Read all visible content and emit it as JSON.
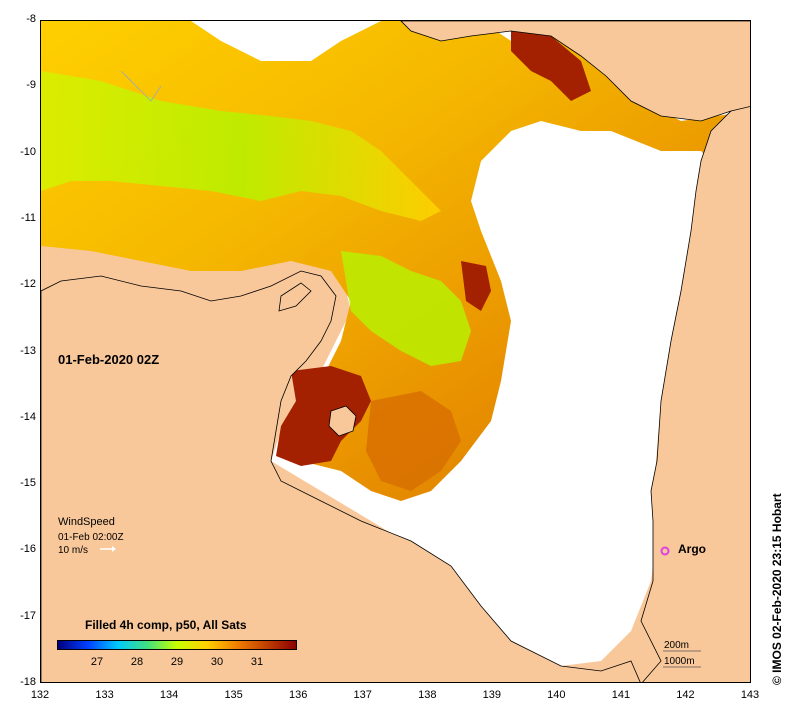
{
  "map": {
    "date_label": "01-Feb-2020 02Z",
    "lon_ticks": [
      "132",
      "133",
      "134",
      "135",
      "136",
      "137",
      "138",
      "139",
      "140",
      "141",
      "142",
      "143"
    ],
    "lat_ticks": [
      "-8",
      "-9",
      "-10",
      "-11",
      "-12",
      "-13",
      "-14",
      "-15",
      "-16",
      "-17",
      "-18"
    ],
    "lon_range": [
      132,
      143
    ],
    "lat_range": [
      -18,
      -8
    ],
    "land_color": "#f9c89a",
    "no_data_color": "#ffffff"
  },
  "wind": {
    "title": "WindSpeed",
    "time": "01-Feb 02:00Z",
    "scale": "10 m/s",
    "arrow_icon": "wind-arrow-icon"
  },
  "argo": {
    "label": "Argo",
    "lon": 141.7,
    "lat": -16.0,
    "marker_color": "#e040e0"
  },
  "colorbar": {
    "title": "Filled 4h comp, p50, All Sats",
    "ticks": [
      "27",
      "28",
      "29",
      "30",
      "31"
    ],
    "range": [
      26.0,
      32.0
    ],
    "colors": [
      "#00007f",
      "#0040ff",
      "#00c8ff",
      "#40e080",
      "#c8ff00",
      "#ffd000",
      "#f08000",
      "#c04000",
      "#8b0000"
    ]
  },
  "depth_legend": {
    "contour_200": "200m",
    "contour_1000": "1000m"
  },
  "credit": "© IMOS 02-Feb-2020 23:15 Hobart"
}
